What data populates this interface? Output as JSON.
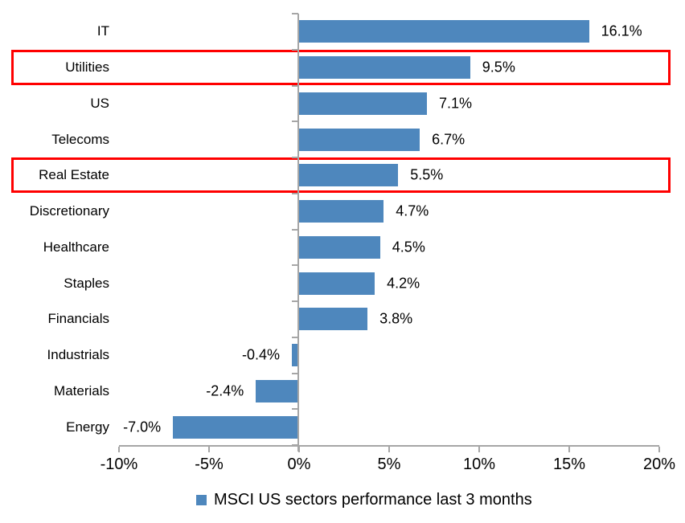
{
  "chart_data": {
    "type": "bar",
    "orientation": "horizontal",
    "categories": [
      "IT",
      "Utilities",
      "US",
      "Telecoms",
      "Real Estate",
      "Discretionary",
      "Healthcare",
      "Staples",
      "Financials",
      "Industrials",
      "Materials",
      "Energy"
    ],
    "values": [
      16.1,
      9.5,
      7.1,
      6.7,
      5.5,
      4.7,
      4.5,
      4.2,
      3.8,
      -0.4,
      -2.4,
      -7.0
    ],
    "value_labels": [
      "16.1%",
      "9.5%",
      "7.1%",
      "6.7%",
      "5.5%",
      "4.7%",
      "4.5%",
      "4.2%",
      "3.8%",
      "-0.4%",
      "-2.4%",
      "-7.0%"
    ],
    "x_ticks": [
      {
        "value": -10,
        "label": "-10%"
      },
      {
        "value": -5,
        "label": "-5%"
      },
      {
        "value": 0,
        "label": "0%"
      },
      {
        "value": 5,
        "label": "5%"
      },
      {
        "value": 10,
        "label": "10%"
      },
      {
        "value": 15,
        "label": "15%"
      },
      {
        "value": 20,
        "label": "20%"
      }
    ],
    "xlim": [
      -10,
      20
    ],
    "grid": false,
    "legend_position": "bottom",
    "highlighted_categories": [
      "Utilities",
      "Real Estate"
    ],
    "colors": {
      "bar": "#4e87bd",
      "axis": "#a6a6a6",
      "highlight_border": "#ff0000",
      "text": "#000000"
    }
  },
  "legend": {
    "label": "MSCI US sectors performance last 3 months",
    "marker": "blue-square"
  }
}
